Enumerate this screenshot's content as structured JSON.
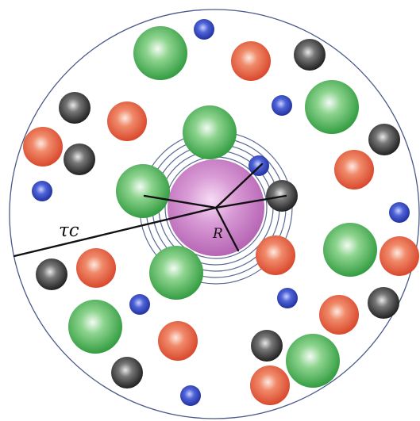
{
  "labels": {
    "cutoff_radius": "τc",
    "solute_radius": "R"
  },
  "colors": {
    "boundary": "#4a5a8a",
    "shell": "#5a6a95",
    "center": "#c77cc5",
    "green": "#3aa64a",
    "red": "#e0563a",
    "black": "#2a2a2a",
    "blue": "#2b3fb0"
  }
}
